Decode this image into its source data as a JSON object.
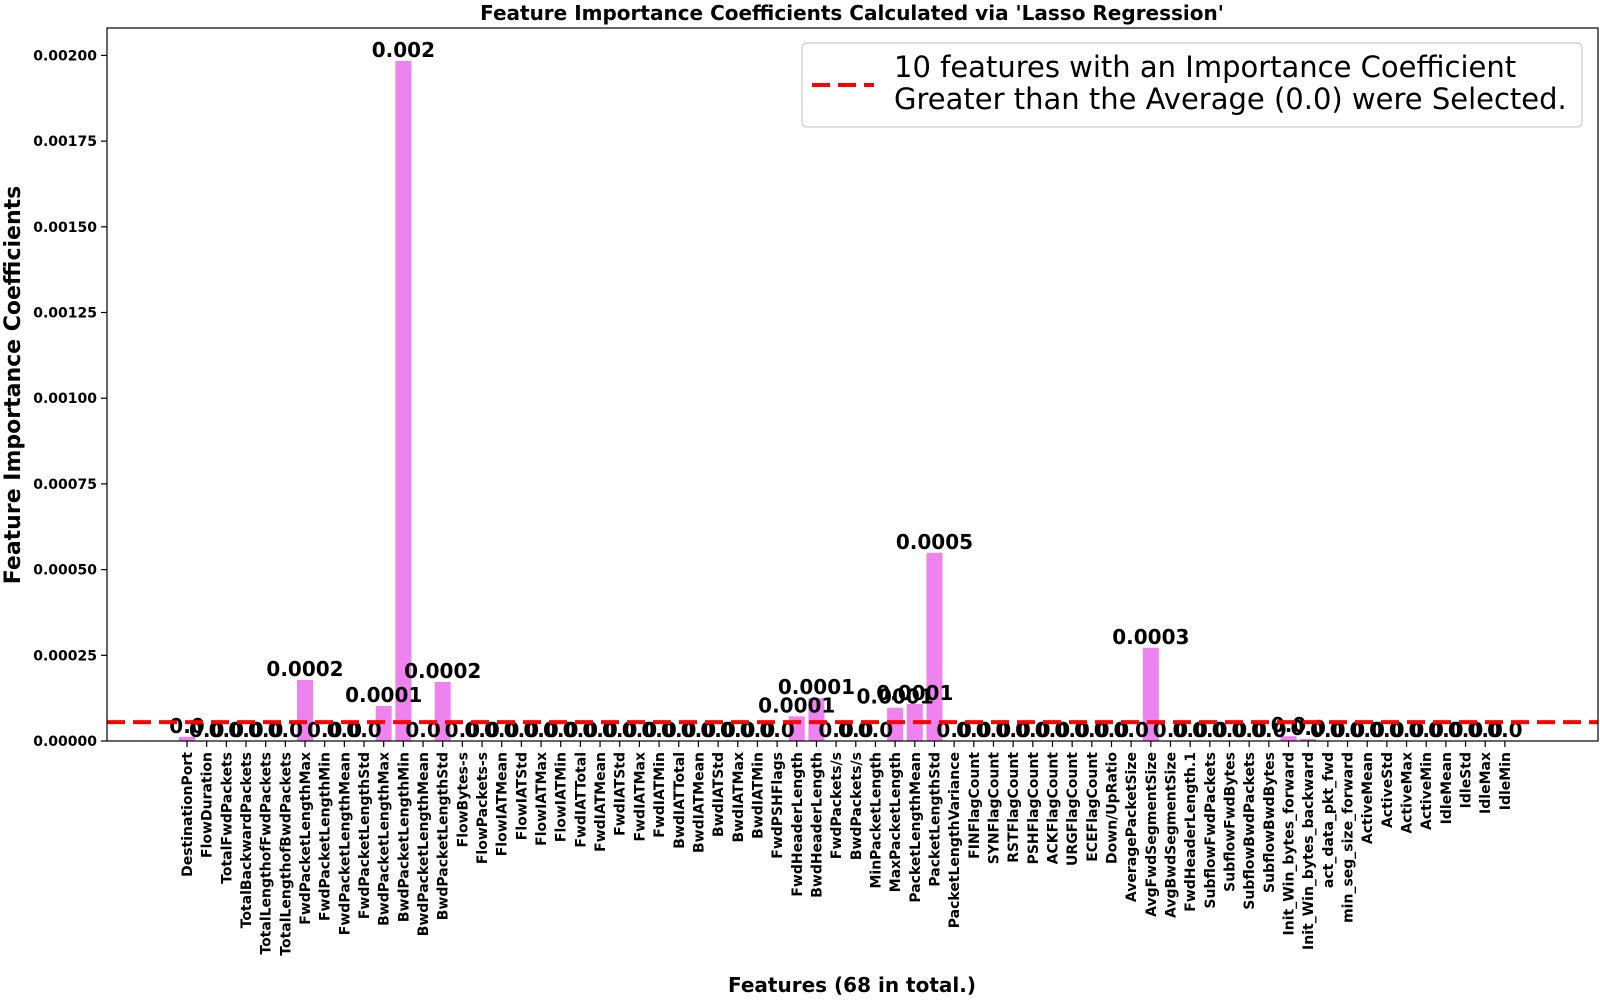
{
  "chart_data": {
    "type": "bar",
    "title": "Feature Importance Coefficients Calculated via 'Lasso Regression'",
    "xlabel": "Features (68 in total.)",
    "ylabel": "Feature Importance Coefficients",
    "ylim": [
      0,
      0.00208
    ],
    "yticks": [
      "0.00000",
      "0.00025",
      "0.00050",
      "0.00075",
      "0.00100",
      "0.00125",
      "0.00150",
      "0.00175",
      "0.00200"
    ],
    "ytick_values": [
      0,
      0.00025,
      0.0005,
      0.00075,
      0.001,
      0.00125,
      0.0015,
      0.00175,
      0.002
    ],
    "bar_color": "#ee82ee",
    "threshold": 5.5e-05,
    "threshold_color": "#ff0000",
    "legend": {
      "position": "top-right",
      "line1": "10 features with an Importance Coefficient",
      "line2": "Greater than the Average (0.0) were Selected."
    },
    "categories": [
      "DestinationPort",
      "FlowDuration",
      "TotalFwdPackets",
      "TotalBackwardPackets",
      "TotalLengthofFwdPackets",
      "TotalLengthofBwdPackets",
      "FwdPacketLengthMax",
      "FwdPacketLengthMin",
      "FwdPacketLengthMean",
      "FwdPacketLengthStd",
      "BwdPacketLengthMax",
      "BwdPacketLengthMin",
      "BwdPacketLengthMean",
      "BwdPacketLengthStd",
      "FlowBytes-s",
      "FlowPackets-s",
      "FlowIATMean",
      "FlowIATStd",
      "FlowIATMax",
      "FlowIATMin",
      "FwdIATTotal",
      "FwdIATMean",
      "FwdIATStd",
      "FwdIATMax",
      "FwdIATMin",
      "BwdIATTotal",
      "BwdIATMean",
      "BwdIATStd",
      "BwdIATMax",
      "BwdIATMin",
      "FwdPSHFlags",
      "FwdHeaderLength",
      "BwdHeaderLength",
      "FwdPackets/s",
      "BwdPackets/s",
      "MinPacketLength",
      "MaxPacketLength",
      "PacketLengthMean",
      "PacketLengthStd",
      "PacketLengthVariance",
      "FINFlagCount",
      "SYNFlagCount",
      "RSTFlagCount",
      "PSHFlagCount",
      "ACKFlagCount",
      "URGFlagCount",
      "ECEFlagCount",
      "Down/UpRatio",
      "AveragePacketSize",
      "AvgFwdSegmentSize",
      "AvgBwdSegmentSize",
      "FwdHeaderLength.1",
      "SubflowFwdPackets",
      "SubflowFwdBytes",
      "SubflowBwdPackets",
      "SubflowBwdBytes",
      "Init_Win_bytes_forward",
      "Init_Win_bytes_backward",
      "act_data_pkt_fwd",
      "min_seg_size_forward",
      "ActiveMean",
      "ActiveStd",
      "ActiveMax",
      "ActiveMin",
      "IdleMean",
      "IdleStd",
      "IdleMax",
      "IdleMin"
    ],
    "values": [
      1.2e-05,
      0,
      0,
      0,
      0,
      0,
      0.000178,
      0,
      0,
      0,
      0.000102,
      0.001984,
      0,
      0.000172,
      0,
      0,
      0,
      0,
      0,
      0,
      0,
      0,
      0,
      0,
      0,
      0,
      0,
      0,
      0,
      0,
      0,
      7.2e-05,
      0.000125,
      0,
      0,
      0,
      9.7e-05,
      0.000108,
      0.000549,
      0,
      0,
      0,
      0,
      0,
      0,
      0,
      0,
      0,
      0,
      0.000272,
      0,
      0,
      0,
      0,
      0,
      0,
      1.4e-05,
      6e-06,
      0,
      0,
      0,
      0,
      0,
      0,
      0,
      0,
      0,
      0
    ],
    "data_labels": [
      "0.0",
      "0.0",
      "0.0",
      "0.0",
      "0.0",
      "0.0",
      "0.0002",
      "0.0",
      "0.0",
      "0.0",
      "0.0001",
      "0.002",
      "0.0",
      "0.0002",
      "0.0",
      "0.0",
      "0.0",
      "0.0",
      "0.0",
      "0.0",
      "0.0",
      "0.0",
      "0.0",
      "0.0",
      "0.0",
      "0.0",
      "0.0",
      "0.0",
      "0.0",
      "0.0",
      "0.0",
      "0.0001",
      "0.0001",
      "0.0",
      "0.0",
      "0.0",
      "0.0001",
      "0.0001",
      "0.0005",
      "0.0",
      "0.0",
      "0.0",
      "0.0",
      "0.0",
      "0.0",
      "0.0",
      "0.0",
      "0.0",
      "0.0",
      "0.0003",
      "0.0",
      "0.0",
      "0.0",
      "0.0",
      "0.0",
      "0.0",
      "0.0",
      "0.0",
      "0.0",
      "0.0",
      "0.0",
      "0.0",
      "0.0",
      "0.0",
      "0.0",
      "0.0",
      "0.0",
      "0.0"
    ]
  }
}
